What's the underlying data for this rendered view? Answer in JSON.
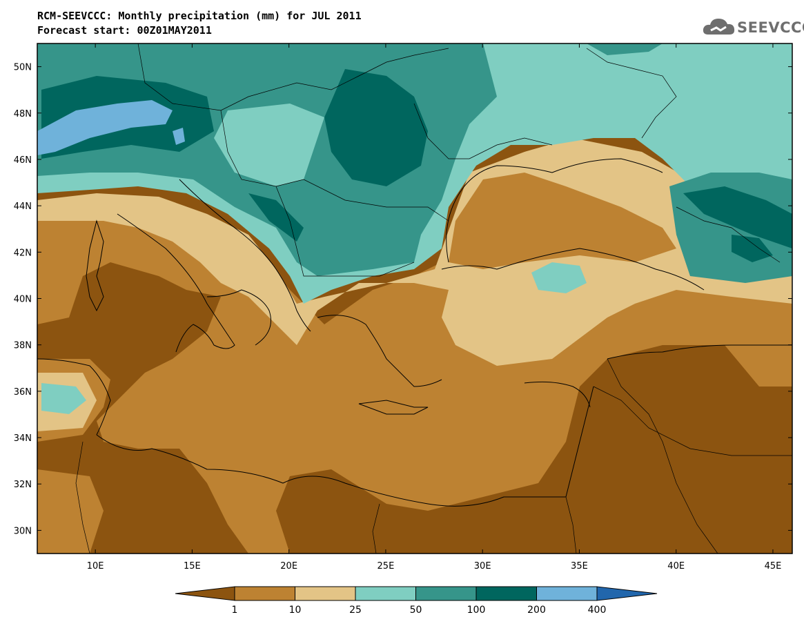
{
  "header": {
    "title": "RCM-SEEVCCC: Monthly precipitation (mm) for JUL 2011",
    "subtitle": "Forecast start: 00Z01MAY2011"
  },
  "logo": {
    "text": "SEEVCCC",
    "icon": "cloud-icon"
  },
  "map": {
    "lon_range": [
      7,
      46
    ],
    "lat_range": [
      29,
      51
    ],
    "lon_ticks": [
      "10E",
      "15E",
      "20E",
      "25E",
      "30E",
      "35E",
      "40E",
      "45E"
    ],
    "lat_ticks": [
      "50N",
      "48N",
      "46N",
      "44N",
      "42N",
      "40N",
      "38N",
      "36N",
      "34N",
      "32N",
      "30N"
    ]
  },
  "colorbar": {
    "labels": [
      "1",
      "10",
      "25",
      "50",
      "100",
      "200",
      "400"
    ],
    "colors": [
      "#8c5410",
      "#bd8232",
      "#e3c486",
      "#7fcec1",
      "#36958a",
      "#00665e",
      "#6fb2da",
      "#2166ac"
    ],
    "units": "mm"
  }
}
